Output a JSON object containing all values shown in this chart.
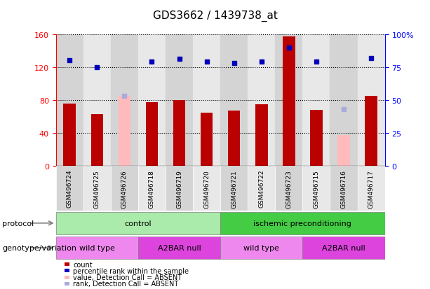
{
  "title": "GDS3662 / 1439738_at",
  "samples": [
    "GSM496724",
    "GSM496725",
    "GSM496726",
    "GSM496718",
    "GSM496719",
    "GSM496720",
    "GSM496721",
    "GSM496722",
    "GSM496723",
    "GSM496715",
    "GSM496716",
    "GSM496717"
  ],
  "counts": [
    76,
    63,
    null,
    77,
    80,
    65,
    67,
    75,
    157,
    68,
    null,
    85
  ],
  "counts_absent": [
    null,
    null,
    85,
    null,
    null,
    null,
    null,
    null,
    null,
    null,
    37,
    null
  ],
  "ranks": [
    80,
    75,
    null,
    79,
    81,
    79,
    78,
    79,
    90,
    79,
    null,
    82
  ],
  "ranks_absent": [
    null,
    null,
    53,
    null,
    null,
    null,
    null,
    null,
    null,
    null,
    43,
    null
  ],
  "ylim_left": [
    0,
    160
  ],
  "ylim_right": [
    0,
    100
  ],
  "yticks_left": [
    0,
    40,
    80,
    120,
    160
  ],
  "yticks_right": [
    0,
    25,
    50,
    75,
    100
  ],
  "ytick_labels_right": [
    "0",
    "25",
    "50",
    "75",
    "100%"
  ],
  "protocol_groups": [
    {
      "label": "control",
      "start": 0,
      "end": 6,
      "color": "#aaeaaa"
    },
    {
      "label": "ischemic preconditioning",
      "start": 6,
      "end": 12,
      "color": "#44cc44"
    }
  ],
  "genotype_groups": [
    {
      "label": "wild type",
      "start": 0,
      "end": 3,
      "color": "#ee88ee"
    },
    {
      "label": "A2BAR null",
      "start": 3,
      "end": 6,
      "color": "#dd44dd"
    },
    {
      "label": "wild type",
      "start": 6,
      "end": 9,
      "color": "#ee88ee"
    },
    {
      "label": "A2BAR null",
      "start": 9,
      "end": 12,
      "color": "#dd44dd"
    }
  ],
  "bar_color_present": "#bb0000",
  "bar_color_absent": "#ffbbbb",
  "rank_color_present": "#0000bb",
  "rank_color_absent": "#aaaadd",
  "col_bg_even": "#d4d4d4",
  "col_bg_odd": "#e8e8e8",
  "legend_items": [
    {
      "label": "count",
      "color": "#bb0000"
    },
    {
      "label": "percentile rank within the sample",
      "color": "#0000bb"
    },
    {
      "label": "value, Detection Call = ABSENT",
      "color": "#ffbbbb"
    },
    {
      "label": "rank, Detection Call = ABSENT",
      "color": "#aaaadd"
    }
  ],
  "protocol_label": "protocol",
  "genotype_label": "genotype/variation",
  "background_color": "#ffffff",
  "bar_width": 0.45,
  "rank_marker_size": 20
}
